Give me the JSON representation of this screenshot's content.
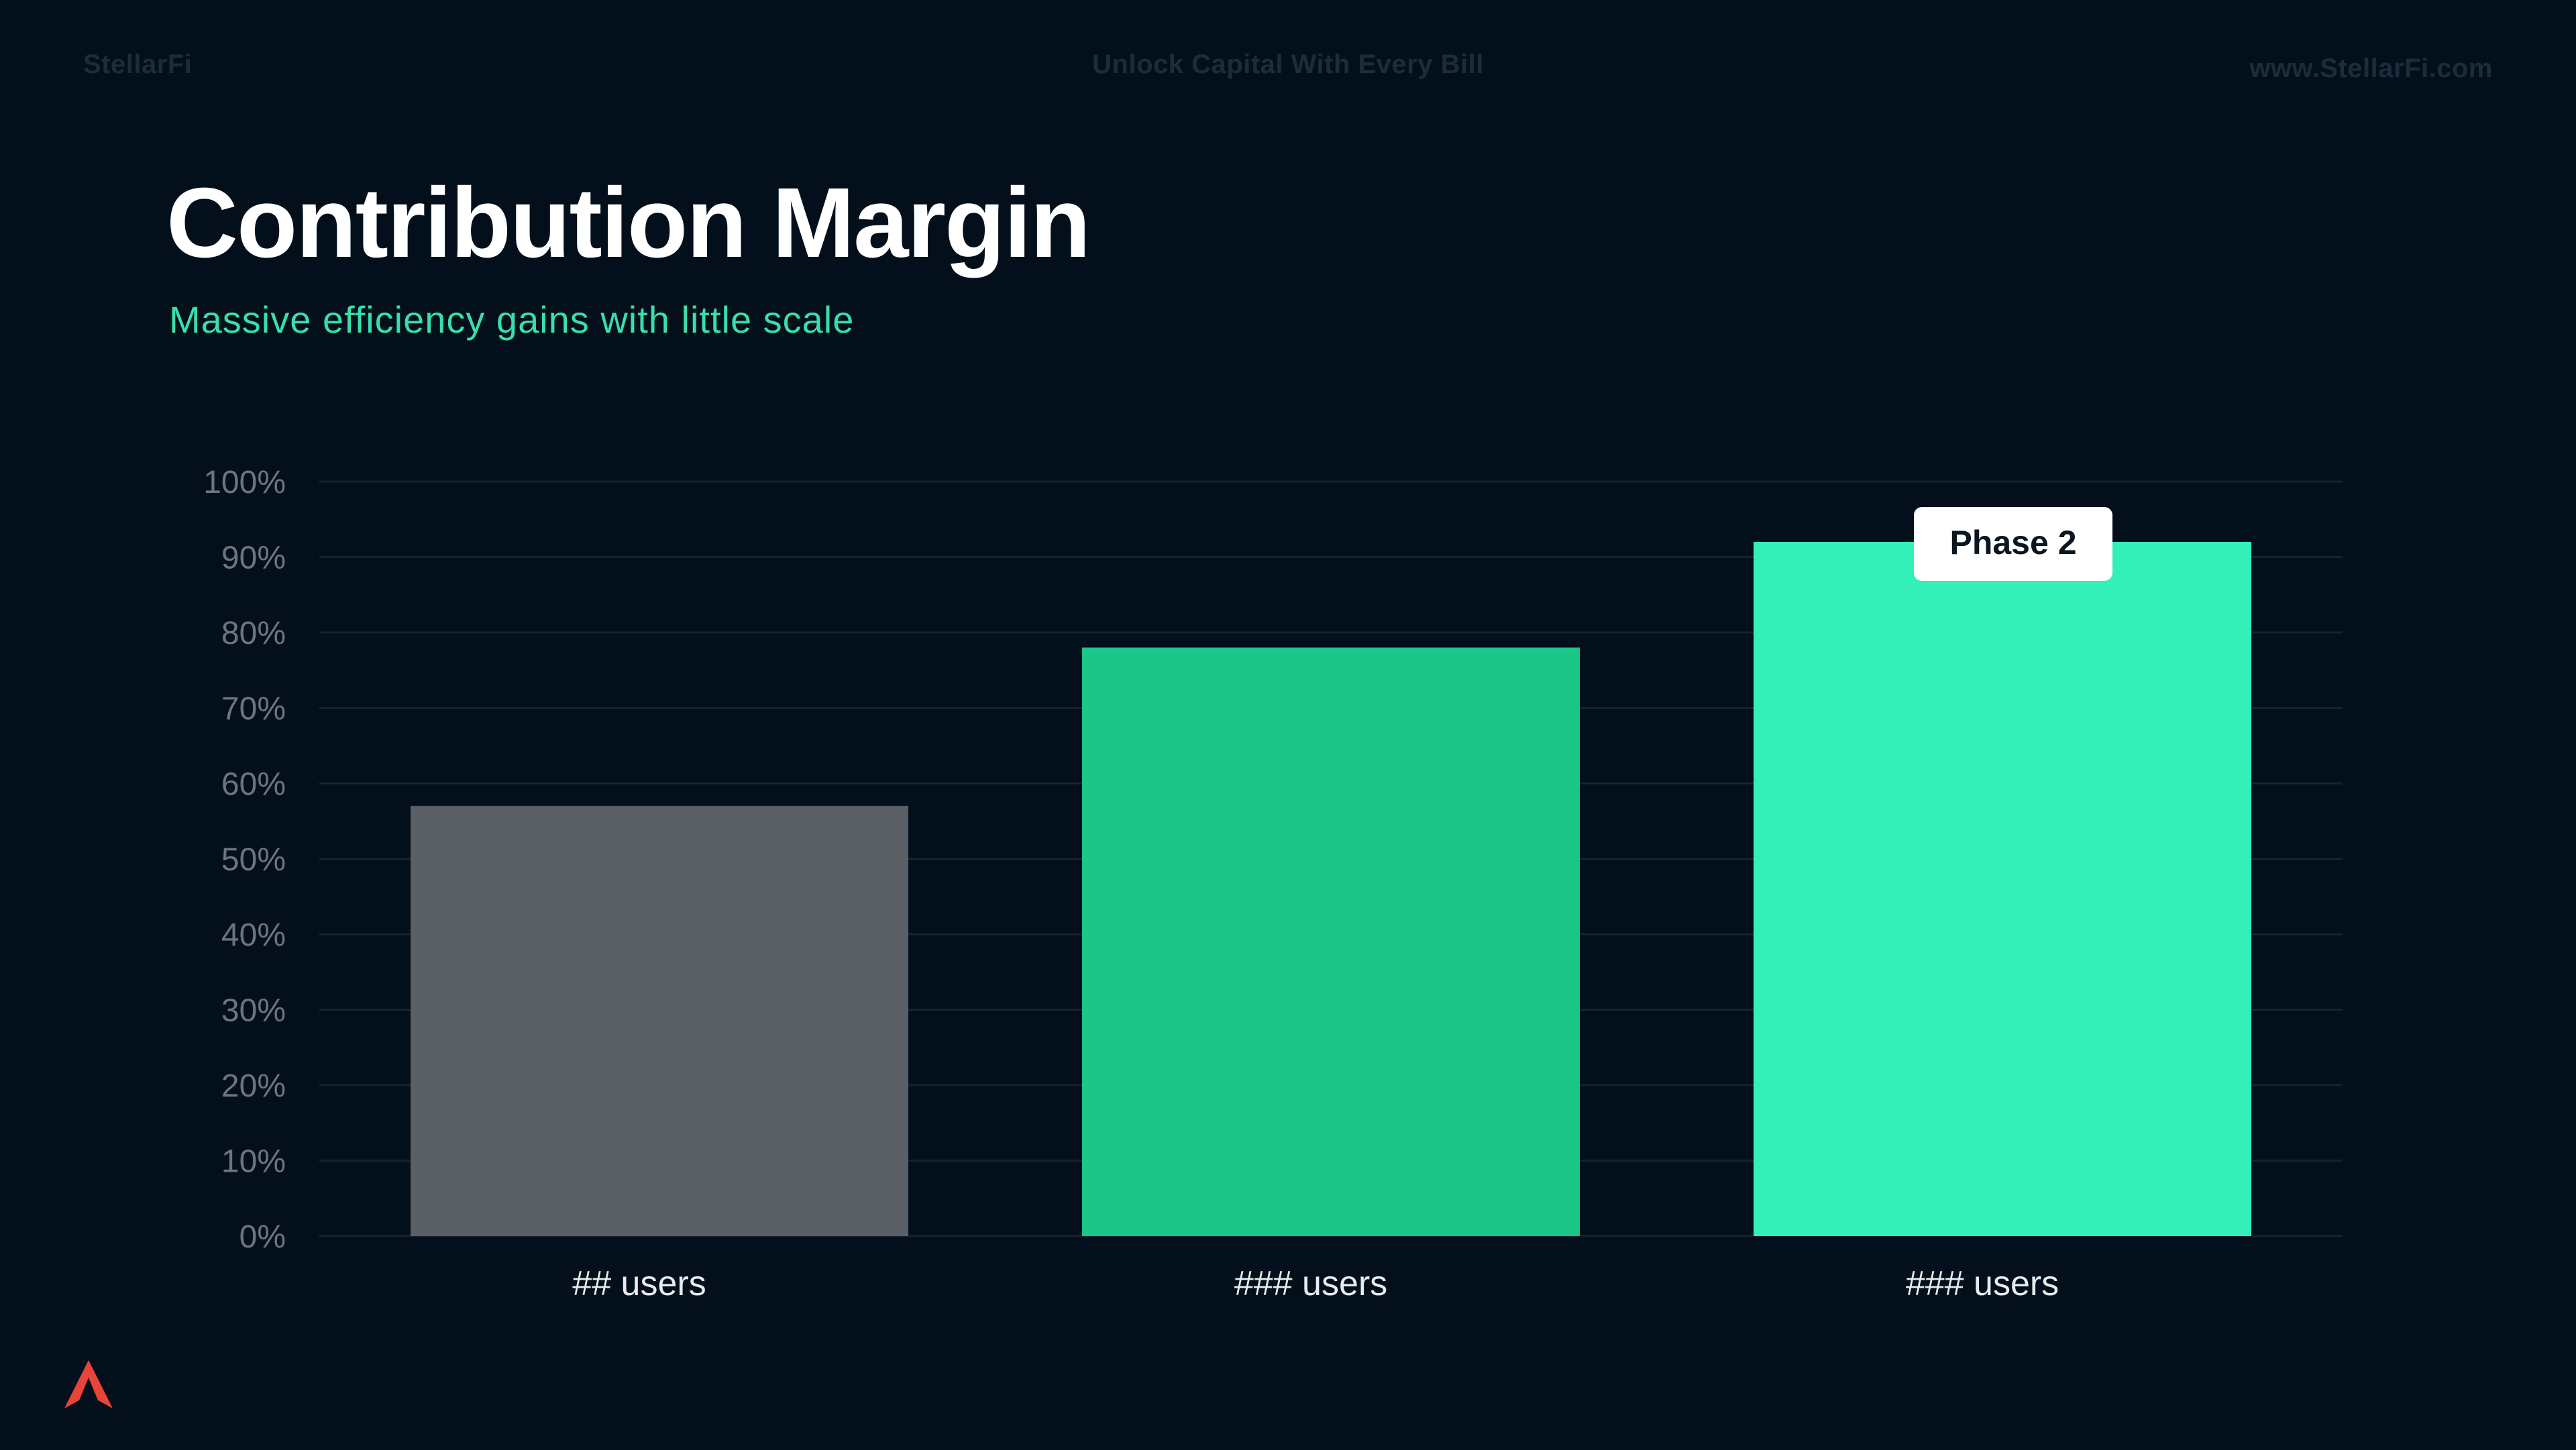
{
  "header": {
    "brand": "StellarFi",
    "tagline": "Unlock Capital With Every Bill",
    "website": "www.StellarFi.com"
  },
  "slide": {
    "title": "Contribution Margin",
    "subtitle": "Massive efficiency gains with little scale"
  },
  "colors": {
    "background": "#03101c",
    "accent": "#38dfa9",
    "bar_gray": "#5a5f66",
    "bar_green": "#1cc689",
    "bar_mint": "#33f0b8",
    "logo": "#e8443a"
  },
  "logo_icon": "stellarfi-logo-icon",
  "chart_data": {
    "type": "bar",
    "title": "",
    "xlabel": "",
    "ylabel": "",
    "ylim": [
      0,
      100
    ],
    "yticks": [
      0,
      10,
      20,
      30,
      40,
      50,
      60,
      70,
      80,
      90,
      100
    ],
    "ytick_suffix": "%",
    "categories": [
      "## users",
      "### users",
      "### users"
    ],
    "values": [
      57,
      78,
      92
    ],
    "bar_colors": [
      "#5a5f66",
      "#1cc689",
      "#33f0b8"
    ],
    "annotations": [
      {
        "category_index": 2,
        "text": "Phase 2"
      }
    ],
    "grid": true
  }
}
